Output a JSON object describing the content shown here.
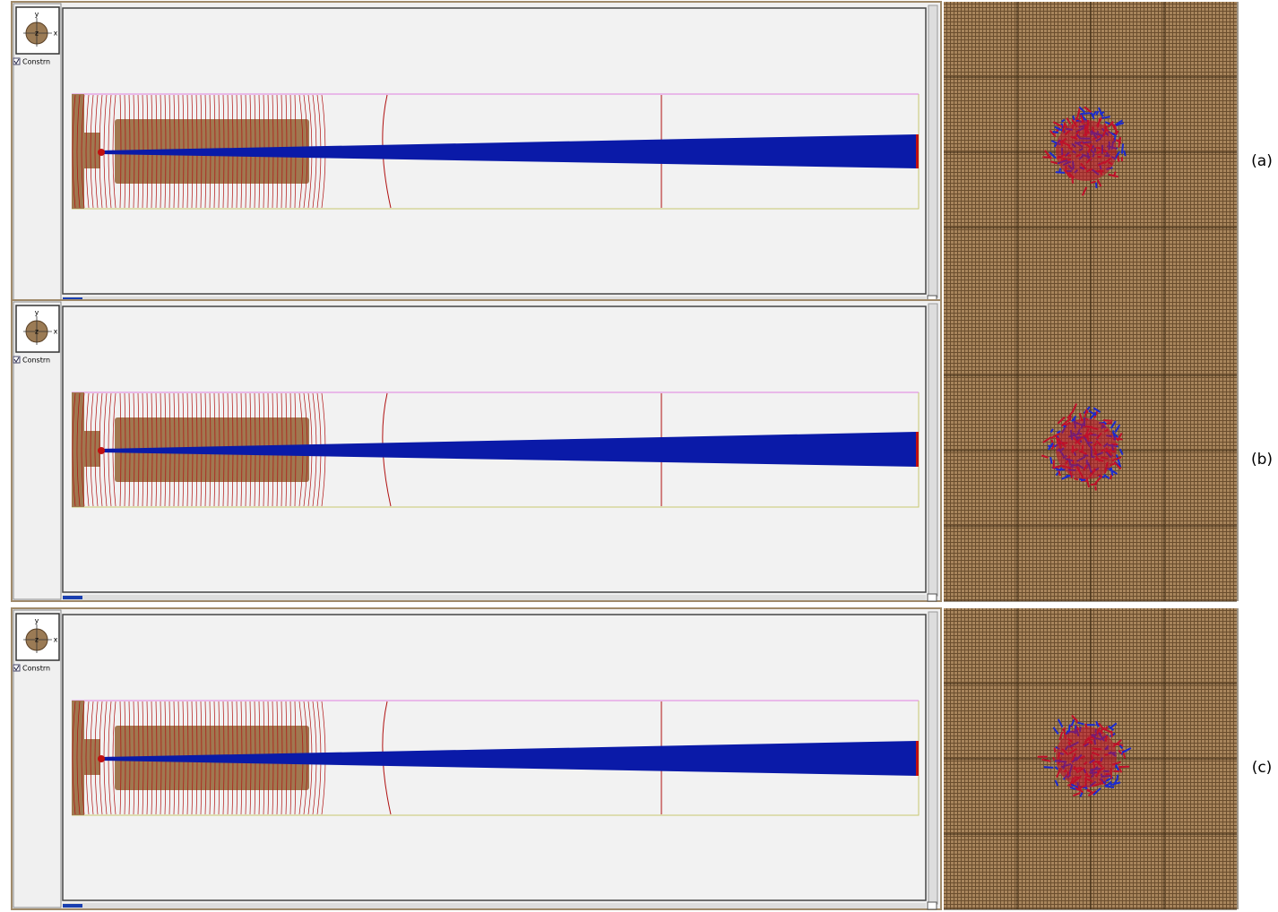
{
  "panels": [
    {
      "axis_y": "y",
      "axis_z": "z",
      "axis_x": "x",
      "checkbox": "Constrn",
      "caption": "(a)"
    },
    {
      "axis_y": "y",
      "axis_z": "z",
      "axis_x": "x",
      "checkbox": "Constrn",
      "caption": "(b)"
    },
    {
      "axis_y": "y",
      "axis_z": "z",
      "axis_x": "x",
      "checkbox": "Constrn",
      "caption": "(c)"
    }
  ]
}
